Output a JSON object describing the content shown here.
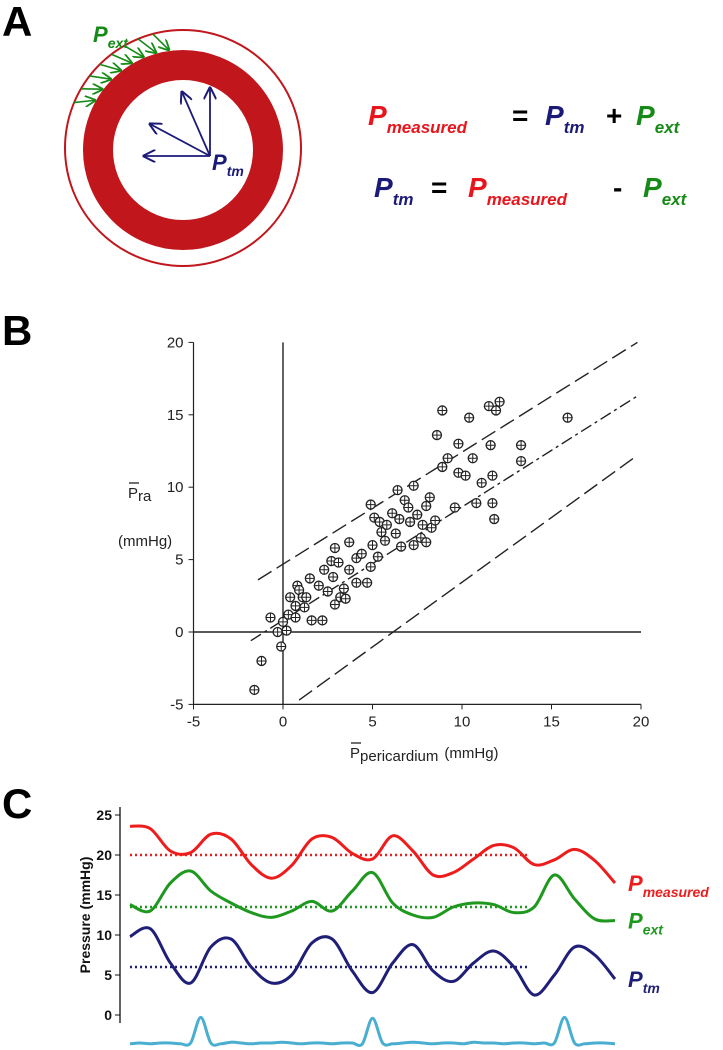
{
  "panel_labels": [
    "A",
    "B",
    "C"
  ],
  "diagram": {
    "label_ext": {
      "main": "P",
      "sub": "ext"
    },
    "label_tm": {
      "main": "P",
      "sub": "tm"
    }
  },
  "equations": [
    [
      {
        "main": "P",
        "sub": "measured",
        "color": "#e8161c"
      },
      "=",
      {
        "main": "P",
        "sub": "tm",
        "color": "#1b1a78"
      },
      "+",
      {
        "main": "P",
        "sub": "ext",
        "color": "#168a16"
      }
    ],
    [
      {
        "main": "P",
        "sub": "tm",
        "color": "#1b1a78"
      },
      "=",
      {
        "main": "P",
        "sub": "measured",
        "color": "#e8161c"
      },
      "-",
      {
        "main": "P",
        "sub": "ext",
        "color": "#168a16"
      }
    ]
  ],
  "chart_data": [
    {
      "type": "scatter",
      "xlabel": {
        "main": "P",
        "sub": "pericardium",
        "unit": "(mmHg)"
      },
      "ylabel": {
        "main": "P",
        "sub": "ra",
        "unit": "(mmHg)"
      },
      "xlim": [
        -5,
        20
      ],
      "ylim": [
        -5,
        20
      ],
      "xticks": [
        -5,
        0,
        5,
        10,
        15,
        20
      ],
      "yticks": [
        -5,
        0,
        5,
        10,
        15,
        20
      ],
      "zero_lines": true,
      "color": "#222222",
      "x": [
        -1.6,
        -1.2,
        -0.7,
        -0.3,
        -0.1,
        0,
        0.2,
        0.4,
        0.3,
        0.7,
        0.7,
        0.8,
        0.9,
        1.1,
        1.2,
        1.3,
        1.5,
        1.6,
        2.2,
        2.0,
        2.3,
        2.5,
        2.7,
        2.8,
        2.9,
        2.9,
        3.1,
        3.2,
        3.4,
        3.5,
        3.7,
        4.1,
        3.7,
        4.1,
        4.4,
        4.9,
        4.7,
        4.9,
        5.0,
        5.1,
        5.4,
        5.5,
        5.3,
        5.8,
        5.7,
        6.1,
        6.3,
        6.4,
        6.5,
        6.6,
        6.8,
        7.1,
        7.3,
        7.0,
        7.5,
        7.3,
        7.7,
        7.8,
        8.0,
        8.2,
        8.0,
        8.3,
        8.5,
        8.6,
        8.9,
        8.9,
        9.2,
        9.6,
        9.8,
        9.8,
        10.2,
        10.4,
        10.6,
        10.8,
        11.1,
        11.5,
        11.6,
        11.7,
        11.8,
        11.7,
        11.9,
        12.1,
        13.3,
        13.3,
        15.9
      ],
      "y": [
        -4.0,
        -2.0,
        1.0,
        0,
        -1.0,
        0.7,
        0.1,
        2.4,
        1.2,
        1.8,
        1.0,
        3.2,
        2.9,
        2.4,
        1.7,
        2.4,
        3.7,
        0.8,
        0.8,
        3.2,
        4.3,
        2.8,
        4.9,
        3.8,
        5.8,
        1.9,
        4.8,
        2.4,
        3.0,
        2.3,
        6.2,
        5.1,
        4.3,
        3.4,
        5.4,
        4.5,
        3.4,
        8.8,
        6.0,
        7.9,
        7.6,
        6.9,
        5.2,
        7.4,
        6.3,
        8.2,
        6.8,
        9.8,
        7.8,
        5.9,
        9.1,
        7.6,
        10.1,
        8.6,
        8.1,
        6.0,
        6.5,
        7.4,
        8.7,
        9.3,
        6.2,
        7.2,
        7.7,
        13.6,
        15.3,
        11.4,
        12.0,
        8.6,
        11.0,
        13.0,
        10.8,
        14.8,
        12.0,
        8.9,
        10.3,
        15.6,
        12.9,
        10.8,
        7.8,
        8.9,
        15.3,
        15.9,
        12.9,
        11.8,
        14.8
      ],
      "reference_lines": [
        {
          "x": [
            -1.4,
            19.8
          ],
          "y": [
            3.6,
            20
          ],
          "style": "dashed"
        },
        {
          "x": [
            -1.8,
            19.8
          ],
          "y": [
            -0.6,
            16.3
          ],
          "style": "dash-dot"
        },
        {
          "x": [
            0.9,
            19.8
          ],
          "y": [
            -4.7,
            12.2
          ],
          "style": "dashed"
        }
      ]
    },
    {
      "type": "line",
      "ylabel": "Pressure (mmHg)",
      "ylim": [
        -4,
        26
      ],
      "yticks": [
        0,
        5,
        10,
        15,
        20,
        25
      ],
      "series": [
        {
          "name": {
            "main": "P",
            "sub": "measured"
          },
          "color": "#ee1d1d",
          "mean": 20,
          "values": [
            23.6,
            23.3,
            20.5,
            20.3,
            22.6,
            22.0,
            18.8,
            17.1,
            18.7,
            22.0,
            22.2,
            20.2,
            19.5,
            22.4,
            20.5,
            17.5,
            17.8,
            19.5,
            21.2,
            20.9,
            18.8,
            19.4,
            20.7,
            19.3,
            16.5
          ]
        },
        {
          "name": {
            "main": "P",
            "sub": "ext"
          },
          "color": "#1e981e",
          "mean": 13.5,
          "values": [
            13.8,
            13.0,
            16.5,
            18.0,
            15.5,
            14.0,
            12.8,
            12.2,
            13.0,
            14.2,
            13.0,
            15.5,
            17.8,
            14.0,
            12.5,
            12.2,
            13.5,
            14.0,
            13.8,
            12.8,
            13.5,
            17.5,
            14.5,
            12.0,
            11.8
          ]
        },
        {
          "name": {
            "main": "P",
            "sub": "tm"
          },
          "color": "#1f1f78",
          "mean": 6,
          "values": [
            9.8,
            10.8,
            6.5,
            4.0,
            8.5,
            9.5,
            6.0,
            4.0,
            5.0,
            9.0,
            9.5,
            5.5,
            2.8,
            6.5,
            8.8,
            5.5,
            4.2,
            6.5,
            8.0,
            6.0,
            2.5,
            5.0,
            8.5,
            7.5,
            4.5
          ]
        },
        {
          "color": "#4aaed0",
          "values": [
            -3.6,
            -3.5,
            -3.6,
            -3.5,
            -3.5,
            -3.6,
            -3.5,
            -0.3,
            -3.5,
            -3.6,
            -3.4,
            -3.5,
            -3.6,
            -3.5,
            -3.5,
            -3.4,
            -3.5,
            -3.6,
            -3.5,
            -3.5,
            -3.6,
            -3.5,
            -3.5,
            -3.6,
            -0.4,
            -3.5,
            -3.6,
            -3.5,
            -3.4,
            -3.5,
            -3.6,
            -3.5,
            -3.5,
            -3.6,
            -3.4,
            -3.5,
            -3.5,
            -3.6,
            -3.5,
            -3.5,
            -3.6,
            -3.5,
            -3.5,
            -0.3,
            -3.5,
            -3.6,
            -3.5,
            -3.5,
            -3.6
          ]
        }
      ]
    }
  ]
}
